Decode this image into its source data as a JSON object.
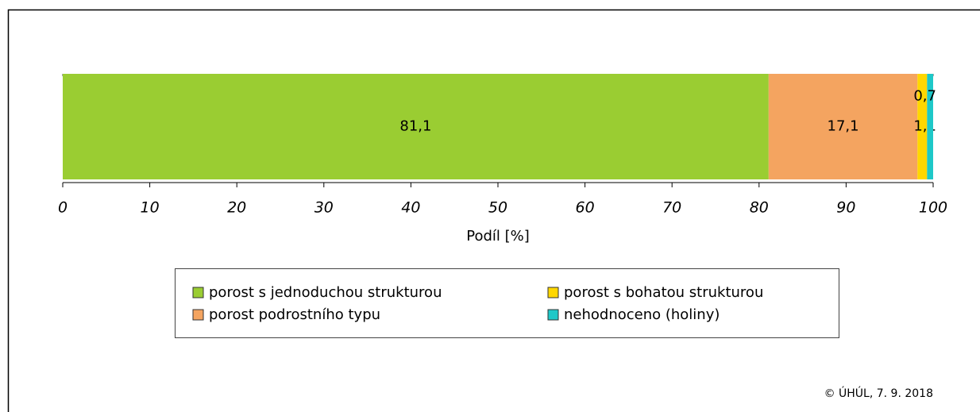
{
  "chart_data": {
    "type": "stacked-barh",
    "series": [
      {
        "name": "porost s jednoduchou strukturou",
        "color": "#9acd32",
        "values": [
          81.1
        ],
        "value_labels": [
          "81,1"
        ]
      },
      {
        "name": "porost podrostního typu",
        "color": "#f4a460",
        "values": [
          17.1
        ],
        "value_labels": [
          "17,1"
        ]
      },
      {
        "name": "porost s bohatou strukturou",
        "color": "#ffd700",
        "values": [
          1.1
        ],
        "value_labels": [
          "1,1"
        ]
      },
      {
        "name": "nehodnoceno (holiny)",
        "color": "#1ec8c8",
        "values": [
          0.7
        ],
        "value_labels": [
          "0,7"
        ]
      }
    ],
    "xlabel": "Podíl [%]",
    "xlim": [
      0,
      100
    ],
    "xticks": [
      0,
      10,
      20,
      30,
      40,
      50,
      60,
      70,
      80,
      90,
      100
    ],
    "legend": "bottom",
    "annotation": "© ÚHÚL, 7. 9. 2018"
  }
}
